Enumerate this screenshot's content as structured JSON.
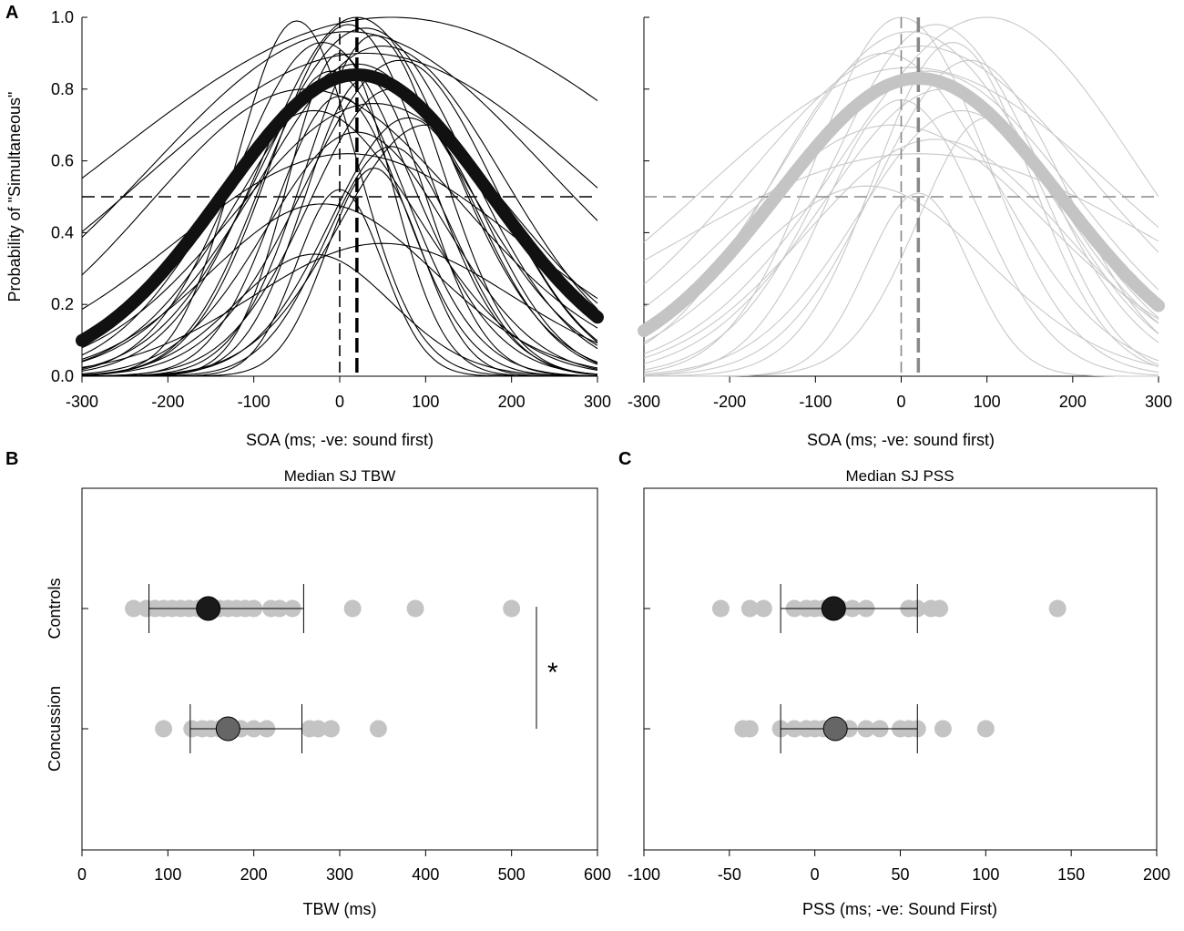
{
  "chart_data": [
    {
      "panel": "A",
      "group": "Concussion",
      "type": "line",
      "title": "",
      "xlabel": "SOA (ms; -ve: sound first)",
      "ylabel": "Probability of \"Simultaneous\"",
      "xlim": [
        -300,
        300
      ],
      "ylim": [
        0,
        1
      ],
      "xticks": [
        "-300",
        "-200",
        "-100",
        "0",
        "100",
        "200",
        "300"
      ],
      "yticks": [
        "0.0",
        "0.2",
        "0.4",
        "0.6",
        "0.8",
        "1.0"
      ],
      "line_color": "#000000",
      "mean_curve": {
        "amplitude": 0.84,
        "center": 20,
        "sigma": 155
      },
      "threshold": 0.5,
      "pss_zero": 0,
      "pss_median": 20,
      "series": [
        {
          "a": 1.0,
          "mu": 20,
          "s": 110
        },
        {
          "a": 0.99,
          "mu": -50,
          "s": 70
        },
        {
          "a": 0.98,
          "mu": 10,
          "s": 90
        },
        {
          "a": 1.0,
          "mu": 60,
          "s": 330
        },
        {
          "a": 0.97,
          "mu": 30,
          "s": 120
        },
        {
          "a": 0.95,
          "mu": 40,
          "s": 80
        },
        {
          "a": 0.93,
          "mu": -20,
          "s": 100
        },
        {
          "a": 0.92,
          "mu": 50,
          "s": 140
        },
        {
          "a": 0.9,
          "mu": 0,
          "s": 60
        },
        {
          "a": 0.88,
          "mu": 70,
          "s": 110
        },
        {
          "a": 0.87,
          "mu": 20,
          "s": 130
        },
        {
          "a": 0.85,
          "mu": -10,
          "s": 85
        },
        {
          "a": 0.83,
          "mu": 30,
          "s": 70
        },
        {
          "a": 0.8,
          "mu": 60,
          "s": 95
        },
        {
          "a": 0.78,
          "mu": 0,
          "s": 75
        },
        {
          "a": 0.76,
          "mu": 40,
          "s": 160
        },
        {
          "a": 0.74,
          "mu": -30,
          "s": 120
        },
        {
          "a": 0.72,
          "mu": 80,
          "s": 90
        },
        {
          "a": 0.68,
          "mu": 20,
          "s": 105
        },
        {
          "a": 0.64,
          "mu": 60,
          "s": 75
        },
        {
          "a": 0.62,
          "mu": 10,
          "s": 200
        },
        {
          "a": 0.8,
          "mu": -40,
          "s": 180
        },
        {
          "a": 0.96,
          "mu": 10,
          "s": 230
        },
        {
          "a": 0.9,
          "mu": 30,
          "s": 260
        },
        {
          "a": 0.52,
          "mu": 0,
          "s": 50
        },
        {
          "a": 0.48,
          "mu": -20,
          "s": 130
        },
        {
          "a": 0.37,
          "mu": 50,
          "s": 150
        },
        {
          "a": 0.34,
          "mu": -30,
          "s": 90
        },
        {
          "a": 0.7,
          "mu": 100,
          "s": 100
        },
        {
          "a": 0.58,
          "mu": 40,
          "s": 55
        }
      ]
    },
    {
      "panel": "A",
      "group": "Controls",
      "type": "line",
      "title": "",
      "xlabel": "SOA (ms; -ve: sound first)",
      "ylabel": "",
      "xlim": [
        -300,
        300
      ],
      "ylim": [
        0,
        1
      ],
      "xticks": [
        "-300",
        "-200",
        "-100",
        "0",
        "100",
        "200",
        "300"
      ],
      "line_color": "#c8c8c8",
      "mean_curve": {
        "amplitude": 0.83,
        "center": 20,
        "sigma": 165
      },
      "threshold": 0.5,
      "pss_zero": 0,
      "pss_median": 20,
      "series": [
        {
          "a": 1.0,
          "mu": 0,
          "s": 100
        },
        {
          "a": 1.0,
          "mu": 100,
          "s": 170
        },
        {
          "a": 0.98,
          "mu": 40,
          "s": 120
        },
        {
          "a": 0.96,
          "mu": 10,
          "s": 150
        },
        {
          "a": 0.93,
          "mu": 60,
          "s": 90
        },
        {
          "a": 0.92,
          "mu": 20,
          "s": 200
        },
        {
          "a": 0.9,
          "mu": -20,
          "s": 130
        },
        {
          "a": 0.88,
          "mu": 80,
          "s": 110
        },
        {
          "a": 0.85,
          "mu": 30,
          "s": 170
        },
        {
          "a": 0.8,
          "mu": 50,
          "s": 140
        },
        {
          "a": 0.77,
          "mu": 0,
          "s": 90
        },
        {
          "a": 0.74,
          "mu": 70,
          "s": 120
        },
        {
          "a": 0.7,
          "mu": -10,
          "s": 180
        },
        {
          "a": 0.66,
          "mu": 40,
          "s": 150
        },
        {
          "a": 0.62,
          "mu": 20,
          "s": 280
        },
        {
          "a": 0.53,
          "mu": -40,
          "s": 140
        },
        {
          "a": 0.51,
          "mu": 20,
          "s": 60
        },
        {
          "a": 0.72,
          "mu": 100,
          "s": 80
        },
        {
          "a": 0.86,
          "mu": 10,
          "s": 240
        }
      ]
    },
    {
      "panel": "B",
      "type": "scatter",
      "title": "Median SJ TBW",
      "xlabel": "TBW (ms)",
      "ylabel": "",
      "xlim": [
        0,
        600
      ],
      "xticks": [
        "0",
        "100",
        "200",
        "300",
        "400",
        "500",
        "600"
      ],
      "categories": [
        "Controls",
        "Concussion"
      ],
      "points": {
        "Controls": [
          60,
          75,
          85,
          95,
          105,
          115,
          125,
          135,
          145,
          160,
          170,
          180,
          190,
          200,
          220,
          230,
          245,
          315,
          388,
          500
        ],
        "Concussion": [
          95,
          128,
          140,
          150,
          160,
          170,
          185,
          200,
          215,
          265,
          275,
          290,
          345
        ]
      },
      "median": {
        "Controls": 147,
        "Concussion": 170
      },
      "error_range": {
        "Controls": [
          78,
          258
        ],
        "Concussion": [
          126,
          256
        ]
      },
      "median_colors": {
        "Controls": "#1a1a1a",
        "Concussion": "#666666"
      },
      "significance": "*"
    },
    {
      "panel": "C",
      "type": "scatter",
      "title": "Median SJ PSS",
      "xlabel": "PSS (ms; -ve: Sound First)",
      "ylabel": "",
      "xlim": [
        -100,
        200
      ],
      "xticks": [
        "-100",
        "-50",
        "0",
        "50",
        "100",
        "150",
        "200"
      ],
      "categories": [
        "Controls",
        "Concussion"
      ],
      "points": {
        "Controls": [
          -55,
          -38,
          -30,
          -12,
          -5,
          0,
          5,
          10,
          15,
          22,
          30,
          55,
          60,
          68,
          73,
          142
        ],
        "Concussion": [
          -42,
          -38,
          -20,
          -12,
          -5,
          0,
          5,
          10,
          20,
          30,
          38,
          50,
          55,
          60,
          75,
          100
        ]
      },
      "median": {
        "Controls": 11,
        "Concussion": 12
      },
      "error_range": {
        "Controls": [
          -20,
          60
        ],
        "Concussion": [
          -20,
          60
        ]
      },
      "median_colors": {
        "Controls": "#1a1a1a",
        "Concussion": "#666666"
      }
    }
  ],
  "labels": {
    "panel_a": "A",
    "panel_b": "B",
    "panel_c": "C",
    "ylabel_a": "Probability of \"Simultaneous\"",
    "xlabel_a_left": "SOA (ms; -ve: sound first)",
    "xlabel_a_right": "SOA (ms; -ve: sound first)",
    "title_b": "Median SJ TBW",
    "title_c": "Median SJ PSS",
    "xlabel_b": "TBW (ms)",
    "xlabel_c": "PSS (ms; -ve: Sound First)",
    "cat_controls": "Controls",
    "cat_concussion": "Concussion",
    "significance": "*"
  }
}
